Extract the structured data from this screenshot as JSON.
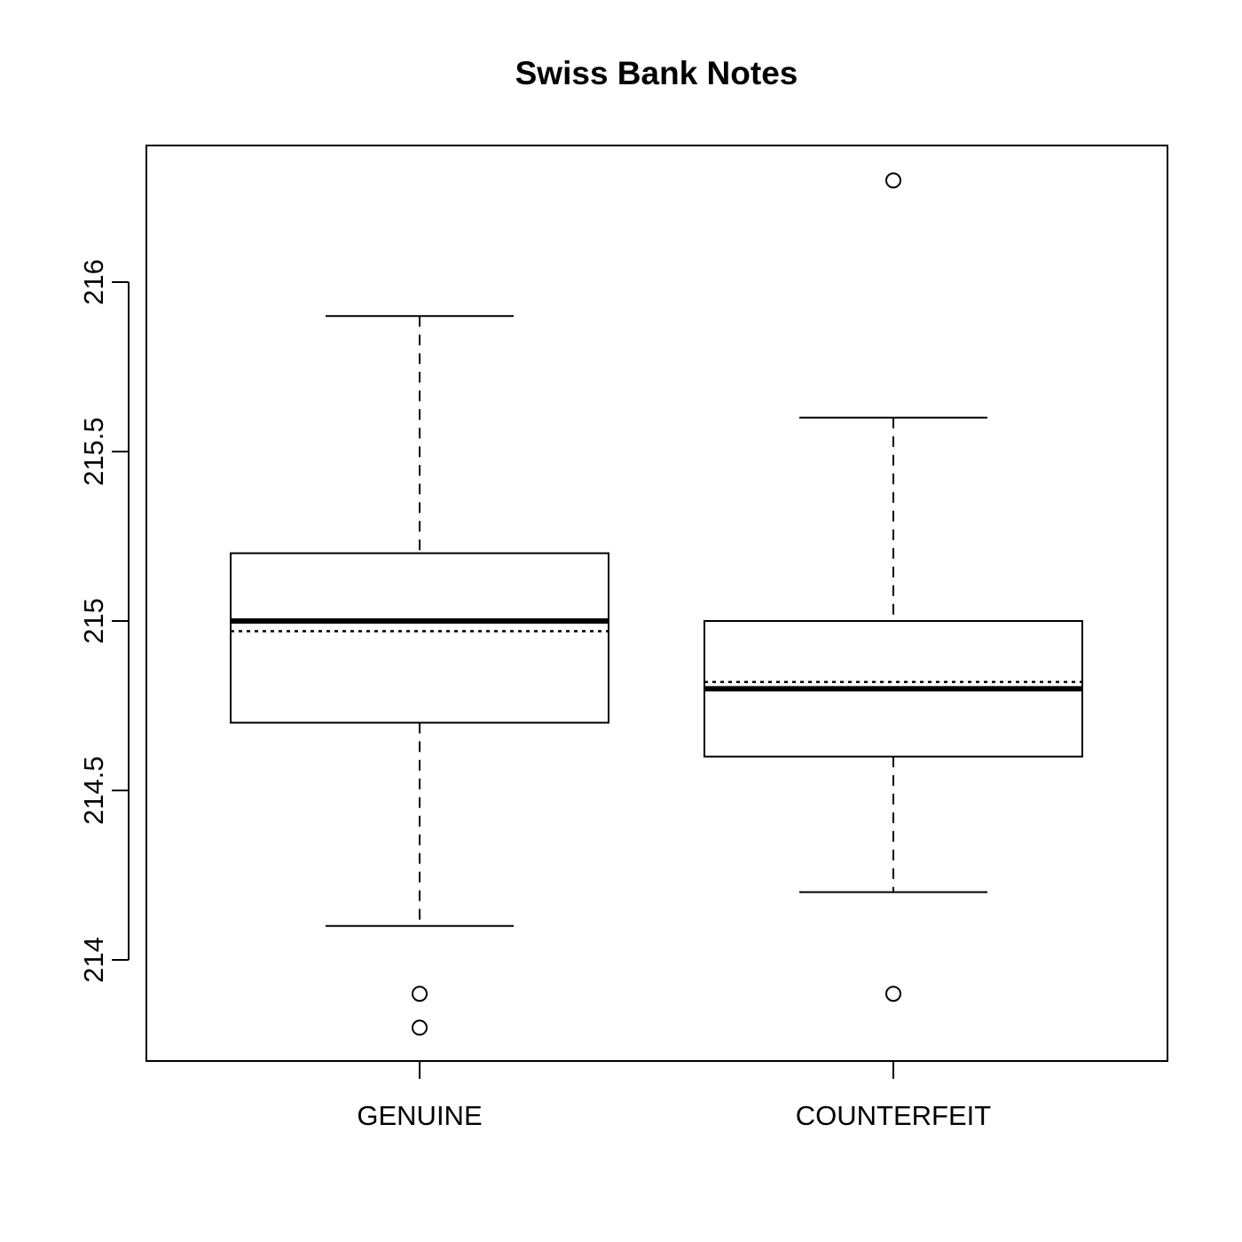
{
  "chart_data": {
    "type": "boxplot",
    "title": "Swiss Bank Notes",
    "xlabel": "",
    "ylabel": "",
    "ylim": [
      213.7,
      216.4
    ],
    "yticks": [
      214,
      214.5,
      215,
      215.5,
      216
    ],
    "ytick_labels": [
      "214",
      "214.5",
      "215",
      "215.5",
      "216"
    ],
    "grid": false,
    "categories": [
      "GENUINE",
      "COUNTERFEIT"
    ],
    "boxes": [
      {
        "category": "GENUINE",
        "whisker_low": 214.1,
        "q1": 214.7,
        "median": 215.0,
        "q3": 215.2,
        "whisker_high": 215.9,
        "mean": 214.97,
        "outliers": [
          213.9,
          213.8
        ]
      },
      {
        "category": "COUNTERFEIT",
        "whisker_low": 214.2,
        "q1": 214.6,
        "median": 214.8,
        "q3": 215.0,
        "whisker_high": 215.6,
        "mean": 214.82,
        "outliers": [
          216.3,
          213.9
        ]
      }
    ]
  }
}
